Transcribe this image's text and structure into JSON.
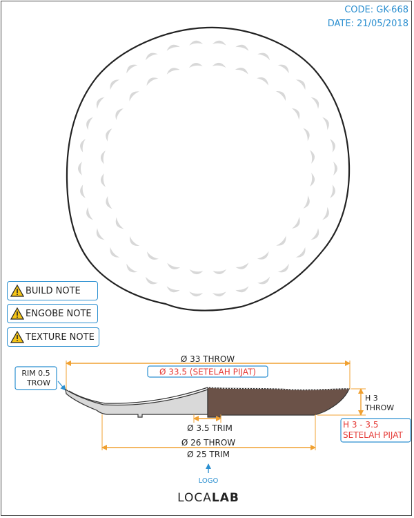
{
  "header": {
    "code": "CODE: GK-668",
    "date": "DATE: 21/05/2018"
  },
  "notes": [
    {
      "label": "BUILD NOTE",
      "icon": "warning-icon"
    },
    {
      "label": "ENGOBE NOTE",
      "icon": "warning-icon"
    },
    {
      "label": "TEXTURE NOTE",
      "icon": "warning-icon"
    }
  ],
  "dimensions": {
    "top_throw": "Ø 33 THROW",
    "top_pijat": "Ø 33.5 (SETELAH PIJAT)",
    "rim_line1": "RIM 0.5",
    "rim_line2": "TROW",
    "height_line1": "H 3",
    "height_line2": "THROW",
    "height_pijat_line1": "H 3 - 3.5",
    "height_pijat_line2": "SETELAH PIJAT",
    "foot_trim": "Ø 3.5 TRIM",
    "bottom_throw": "Ø 26 THROW",
    "bottom_trim": "Ø 25 TRIM"
  },
  "logo": {
    "caption": "LOGO",
    "text_left": "LOCA",
    "text_right": "LAB"
  },
  "colors": {
    "accent_orange": "#f0a030",
    "accent_blue": "#2b8fd0",
    "accent_red": "#e53935",
    "clay_brown": "#6b5248",
    "glaze_gray": "#d4d4d4"
  }
}
